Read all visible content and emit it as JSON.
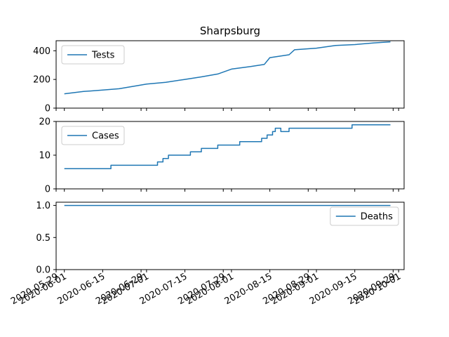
{
  "chart_data": {
    "type": "line",
    "title": "Sharpsburg",
    "line_color": "#1f77b4",
    "x_tick_labels": [
      "2020-05-29",
      "2020-06-01",
      "2020-06-15",
      "2020-06-29",
      "2020-07-01",
      "2020-07-15",
      "2020-07-29",
      "2020-08-01",
      "2020-08-15",
      "2020-08-29",
      "2020-09-01",
      "2020-09-15",
      "2020-09-29",
      "2020-10-01"
    ],
    "xlim": [
      "2020-05-29",
      "2020-10-03"
    ],
    "panels": [
      {
        "name": "tests",
        "legend": "Tests",
        "legend_loc": "upper left",
        "ylim": [
          0,
          470
        ],
        "yticks": [
          "0",
          "200",
          "400"
        ],
        "ytick_values": [
          0,
          200,
          400
        ],
        "x": [
          "2020-06-01",
          "2020-06-08",
          "2020-06-15",
          "2020-06-21",
          "2020-06-28",
          "2020-07-01",
          "2020-07-08",
          "2020-07-15",
          "2020-07-21",
          "2020-07-27",
          "2020-08-01",
          "2020-08-08",
          "2020-08-13",
          "2020-08-15",
          "2020-08-22",
          "2020-08-24",
          "2020-09-01",
          "2020-09-08",
          "2020-09-15",
          "2020-09-22",
          "2020-09-28"
        ],
        "values": [
          100,
          116,
          126,
          135,
          158,
          168,
          180,
          200,
          218,
          238,
          272,
          290,
          305,
          352,
          372,
          407,
          418,
          437,
          443,
          455,
          462
        ]
      },
      {
        "name": "cases",
        "legend": "Cases",
        "legend_loc": "upper left",
        "ylim": [
          0,
          20
        ],
        "yticks": [
          "0",
          "10",
          "20"
        ],
        "ytick_values": [
          0,
          10,
          20
        ],
        "x": [
          "2020-06-01",
          "2020-06-17",
          "2020-06-18",
          "2020-07-02",
          "2020-07-03",
          "2020-07-05",
          "2020-07-07",
          "2020-07-09",
          "2020-07-17",
          "2020-07-19",
          "2020-07-21",
          "2020-07-27",
          "2020-07-29",
          "2020-08-04",
          "2020-08-12",
          "2020-08-14",
          "2020-08-16",
          "2020-08-17",
          "2020-08-19",
          "2020-08-22",
          "2020-09-13",
          "2020-09-14",
          "2020-09-28"
        ],
        "values": [
          6,
          6,
          7,
          7,
          7,
          8,
          9,
          10,
          11,
          11,
          12,
          13,
          13,
          14,
          15,
          16,
          17,
          18,
          17,
          18,
          18,
          19,
          19
        ]
      },
      {
        "name": "deaths",
        "legend": "Deaths",
        "legend_loc": "upper right",
        "ylim": [
          0,
          1.05
        ],
        "yticks": [
          "0.0",
          "0.5",
          "1.0"
        ],
        "ytick_values": [
          0,
          0.5,
          1.0
        ],
        "x": [
          "2020-06-01",
          "2020-09-28"
        ],
        "values": [
          1,
          1
        ]
      }
    ]
  }
}
